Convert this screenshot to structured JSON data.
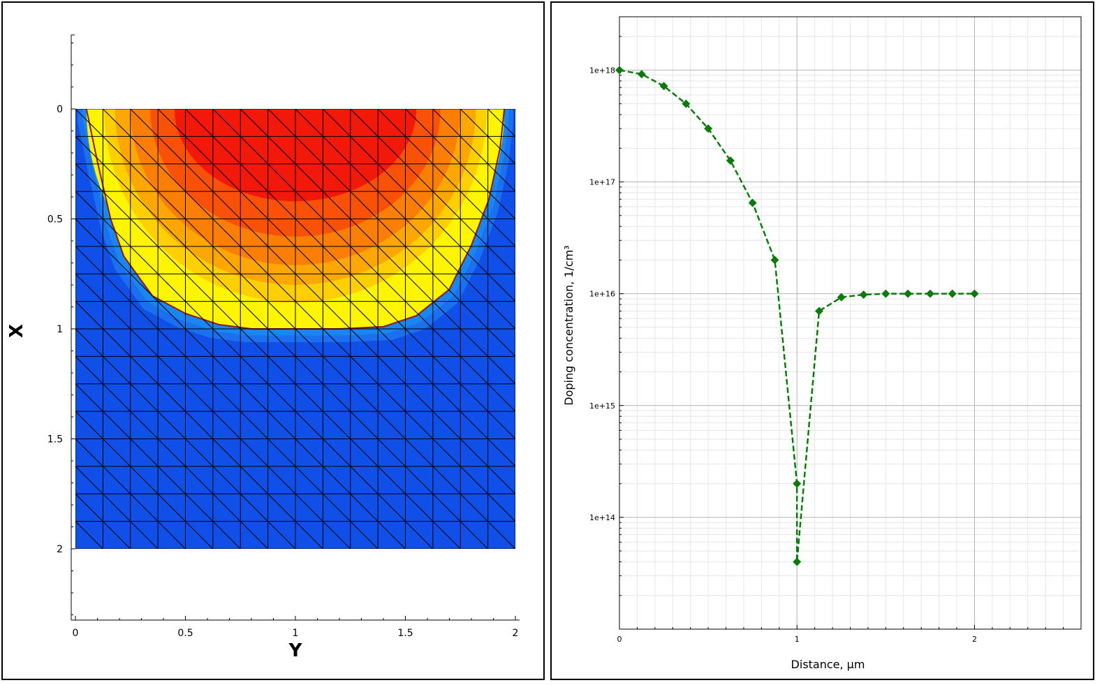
{
  "chart_data": [
    {
      "type": "heatmap",
      "xlabel": "Y",
      "ylabel": "X",
      "xlim": [
        0,
        2
      ],
      "ylim": [
        0,
        2
      ],
      "y_inverted": true,
      "x_ticks": [
        "0",
        "0.5",
        "1",
        "1.5",
        "2"
      ],
      "y_ticks": [
        "0",
        "0.5",
        "1",
        "1.5",
        "2"
      ],
      "mesh": "triangular",
      "mesh_divisions": 16,
      "junction_boundary": [
        [
          0.05,
          0.0
        ],
        [
          0.1,
          0.24
        ],
        [
          0.16,
          0.5
        ],
        [
          0.22,
          0.67
        ],
        [
          0.35,
          0.85
        ],
        [
          0.5,
          0.93
        ],
        [
          0.65,
          0.98
        ],
        [
          0.8,
          1.0
        ],
        [
          1.0,
          1.0
        ],
        [
          1.2,
          1.0
        ],
        [
          1.4,
          0.99
        ],
        [
          1.55,
          0.94
        ],
        [
          1.7,
          0.82
        ],
        [
          1.8,
          0.62
        ],
        [
          1.88,
          0.41
        ],
        [
          1.93,
          0.18
        ],
        [
          1.95,
          0.0
        ]
      ],
      "contour_levels": [
        {
          "color": "#f2190b",
          "depth": 0.42,
          "half_width": 0.55
        },
        {
          "color": "#f95208",
          "depth": 0.58,
          "half_width": 0.66
        },
        {
          "color": "#fb7e06",
          "depth": 0.71,
          "half_width": 0.75
        },
        {
          "color": "#fca704",
          "depth": 0.8,
          "half_width": 0.82
        },
        {
          "color": "#fecf02",
          "depth": 0.88,
          "half_width": 0.87
        },
        {
          "color": "#fff500",
          "depth": 1.0,
          "half_width": 0.95
        }
      ],
      "background_color": "#1050e8",
      "fringe_color": "#1a86f2"
    },
    {
      "type": "line",
      "xlabel": "Distance, µm",
      "ylabel": "Doping concentration, 1/cm³",
      "yscale": "log",
      "xlim": [
        0,
        2.6
      ],
      "ylim": [
        10000000000000.0,
        3e+18
      ],
      "x_ticks": [
        "0",
        "1",
        "2"
      ],
      "y_ticks": [
        "1e+14",
        "1e+15",
        "1e+16",
        "1e+17",
        "1e+18"
      ],
      "grid": true,
      "series": [
        {
          "color": "#0b7a0b",
          "line_style": "dashed",
          "marker": "diamond",
          "x": [
            0,
            0.125,
            0.25,
            0.375,
            0.5,
            0.625,
            0.75,
            0.875,
            1.0,
            1.0,
            1.125,
            1.25,
            1.375,
            1.5,
            1.625,
            1.75,
            1.875,
            2.0
          ],
          "y": [
            1e+18,
            9.2e+17,
            7.2e+17,
            5e+17,
            3e+17,
            1.55e+17,
            6.5e+16,
            2e+16,
            200000000000000.0,
            40000000000000.0,
            7000000000000000.0,
            9300000000000000.0,
            9800000000000000.0,
            1e+16,
            1e+16,
            1e+16,
            1e+16,
            1e+16
          ]
        }
      ]
    }
  ]
}
